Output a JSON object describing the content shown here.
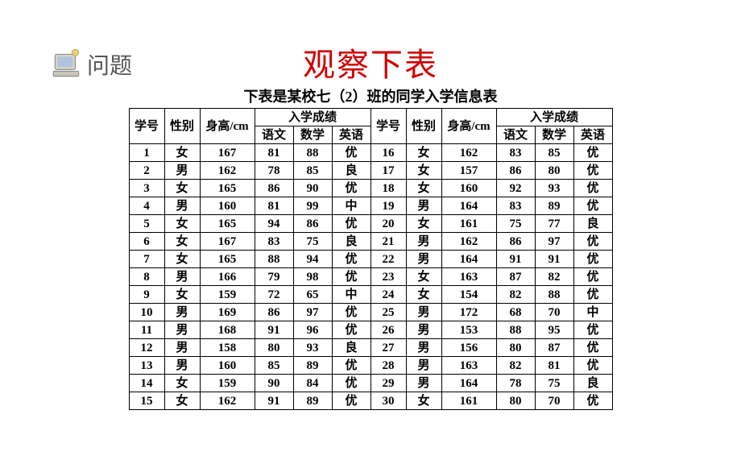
{
  "title": "观察下表",
  "sidebar_label": "问题",
  "subtitle": "下表是某校七（2）班的同学入学信息表",
  "headers": {
    "id": "学号",
    "sex": "性别",
    "height": "身高/cm",
    "score_group": "入学成绩",
    "chinese": "语文",
    "math": "数学",
    "english": "英语"
  },
  "colors": {
    "title": "#d00000",
    "border": "#000000",
    "text": "#000000",
    "sidebar_text": "#555555",
    "background": "#ffffff"
  },
  "rows_left": [
    {
      "id": "1",
      "sex": "女",
      "ht": "167",
      "cn": "81",
      "ma": "88",
      "en": "优"
    },
    {
      "id": "2",
      "sex": "男",
      "ht": "162",
      "cn": "78",
      "ma": "85",
      "en": "良"
    },
    {
      "id": "3",
      "sex": "女",
      "ht": "165",
      "cn": "86",
      "ma": "90",
      "en": "优"
    },
    {
      "id": "4",
      "sex": "男",
      "ht": "160",
      "cn": "81",
      "ma": "99",
      "en": "中"
    },
    {
      "id": "5",
      "sex": "女",
      "ht": "165",
      "cn": "94",
      "ma": "86",
      "en": "优"
    },
    {
      "id": "6",
      "sex": "女",
      "ht": "167",
      "cn": "83",
      "ma": "75",
      "en": "良"
    },
    {
      "id": "7",
      "sex": "女",
      "ht": "165",
      "cn": "88",
      "ma": "94",
      "en": "优"
    },
    {
      "id": "8",
      "sex": "男",
      "ht": "166",
      "cn": "79",
      "ma": "98",
      "en": "优"
    },
    {
      "id": "9",
      "sex": "女",
      "ht": "159",
      "cn": "72",
      "ma": "65",
      "en": "中"
    },
    {
      "id": "10",
      "sex": "男",
      "ht": "169",
      "cn": "86",
      "ma": "97",
      "en": "优"
    },
    {
      "id": "11",
      "sex": "男",
      "ht": "168",
      "cn": "91",
      "ma": "96",
      "en": "优"
    },
    {
      "id": "12",
      "sex": "男",
      "ht": "158",
      "cn": "80",
      "ma": "93",
      "en": "良"
    },
    {
      "id": "13",
      "sex": "男",
      "ht": "160",
      "cn": "85",
      "ma": "89",
      "en": "优"
    },
    {
      "id": "14",
      "sex": "女",
      "ht": "159",
      "cn": "90",
      "ma": "84",
      "en": "优"
    },
    {
      "id": "15",
      "sex": "女",
      "ht": "162",
      "cn": "91",
      "ma": "89",
      "en": "优"
    }
  ],
  "rows_right": [
    {
      "id": "16",
      "sex": "女",
      "ht": "162",
      "cn": "83",
      "ma": "85",
      "en": "优"
    },
    {
      "id": "17",
      "sex": "女",
      "ht": "157",
      "cn": "86",
      "ma": "80",
      "en": "优"
    },
    {
      "id": "18",
      "sex": "女",
      "ht": "160",
      "cn": "92",
      "ma": "93",
      "en": "优"
    },
    {
      "id": "19",
      "sex": "男",
      "ht": "164",
      "cn": "83",
      "ma": "89",
      "en": "优"
    },
    {
      "id": "20",
      "sex": "女",
      "ht": "161",
      "cn": "75",
      "ma": "77",
      "en": "良"
    },
    {
      "id": "21",
      "sex": "男",
      "ht": "162",
      "cn": "86",
      "ma": "97",
      "en": "优"
    },
    {
      "id": "22",
      "sex": "男",
      "ht": "164",
      "cn": "91",
      "ma": "91",
      "en": "优"
    },
    {
      "id": "23",
      "sex": "女",
      "ht": "163",
      "cn": "87",
      "ma": "82",
      "en": "优"
    },
    {
      "id": "24",
      "sex": "女",
      "ht": "154",
      "cn": "82",
      "ma": "88",
      "en": "优"
    },
    {
      "id": "25",
      "sex": "男",
      "ht": "172",
      "cn": "68",
      "ma": "70",
      "en": "中"
    },
    {
      "id": "26",
      "sex": "男",
      "ht": "153",
      "cn": "88",
      "ma": "95",
      "en": "优"
    },
    {
      "id": "27",
      "sex": "男",
      "ht": "156",
      "cn": "80",
      "ma": "87",
      "en": "优"
    },
    {
      "id": "28",
      "sex": "男",
      "ht": "163",
      "cn": "82",
      "ma": "81",
      "en": "优"
    },
    {
      "id": "29",
      "sex": "男",
      "ht": "164",
      "cn": "78",
      "ma": "75",
      "en": "良"
    },
    {
      "id": "30",
      "sex": "女",
      "ht": "161",
      "cn": "80",
      "ma": "70",
      "en": "优"
    }
  ]
}
